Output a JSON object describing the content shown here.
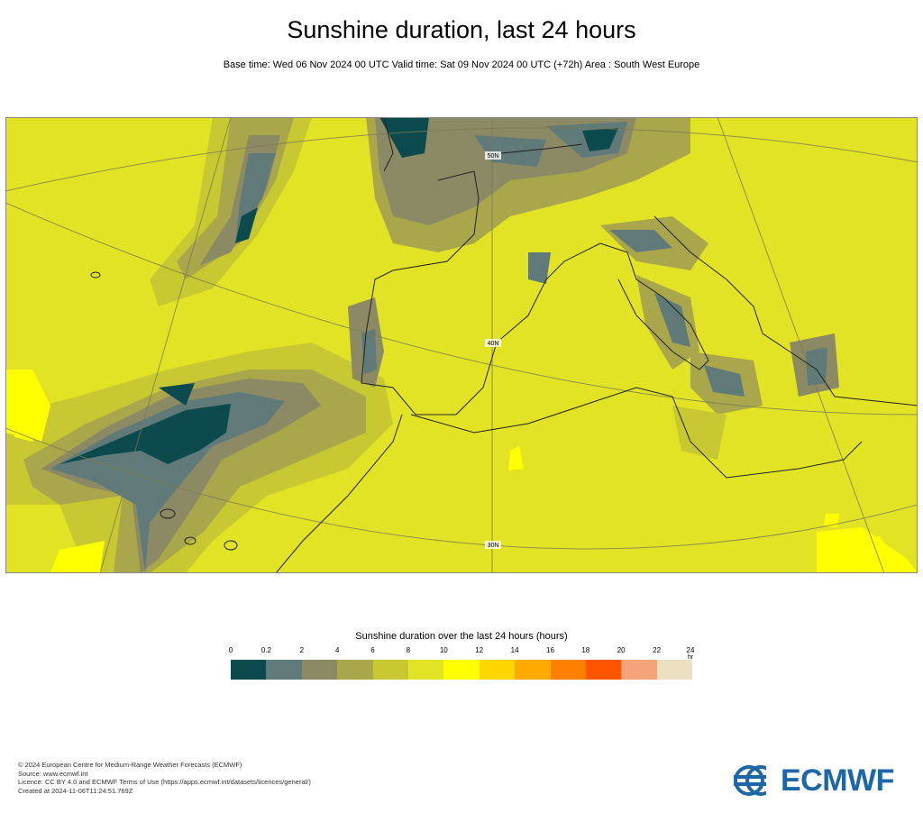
{
  "header": {
    "title": "Sunshine duration, last 24 hours",
    "subtitle": "Base time: Wed 06 Nov 2024 00 UTC Valid time: Sat 09 Nov 2024 00 UTC (+72h) Area : South West Europe"
  },
  "map": {
    "area": "South West Europe",
    "variable": "Sunshine duration",
    "latitude_labels": [
      "50N",
      "40N",
      "30N"
    ]
  },
  "legend": {
    "title": "Sunshine duration over the last 24 hours (hours)",
    "unit": "hr",
    "ticks": [
      "0",
      "0.2",
      "2",
      "4",
      "6",
      "8",
      "10",
      "12",
      "14",
      "16",
      "18",
      "20",
      "22",
      "24"
    ],
    "colors": [
      "#0d4a4d",
      "#5f7a78",
      "#8c8a64",
      "#a9a64c",
      "#c8c832",
      "#e3e326",
      "#ffff00",
      "#ffd700",
      "#ffaa00",
      "#ff8000",
      "#ff5500",
      "#f4a47a",
      "#ede0c0"
    ]
  },
  "footer": {
    "lines": [
      "© 2024 European Centre for Medium-Range Weather Forecasts (ECMWF)",
      "Source: www.ecmwf.int",
      "Licence: CC BY 4.0 and ECMWF Terms of Use (https://apps.ecmwf.int/datasets/licences/general/)",
      "Created at 2024-11-06T11:24:51.769Z"
    ]
  },
  "logo": {
    "text": "ECMWF",
    "color": "#1d66a8"
  }
}
